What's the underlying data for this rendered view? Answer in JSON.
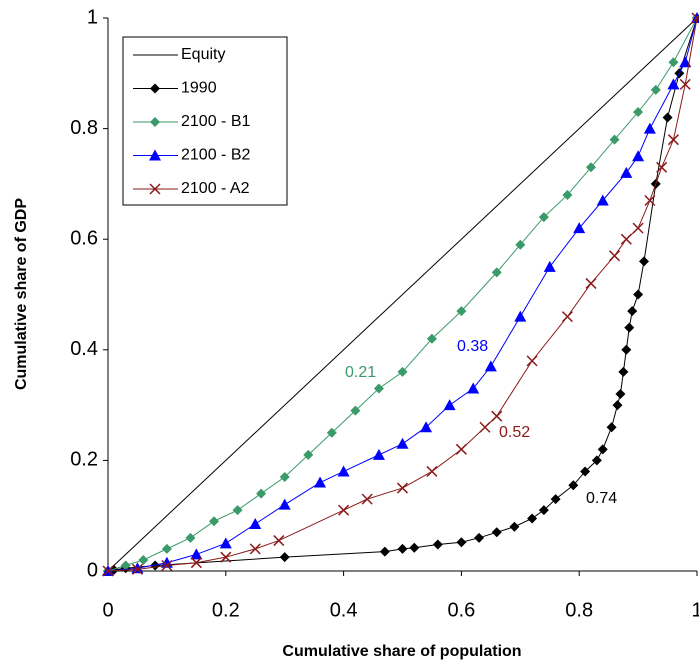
{
  "chart_data": {
    "type": "line",
    "xlabel": "Cumulative share of population",
    "ylabel": "Cumulative share of GDP",
    "xlim": [
      0,
      1
    ],
    "ylim": [
      0,
      1
    ],
    "xticks": [
      0,
      0.2,
      0.4,
      0.6,
      0.8,
      1
    ],
    "yticks": [
      0,
      0.2,
      0.4,
      0.6,
      0.8,
      1
    ],
    "legend": "upper left",
    "series": [
      {
        "name": "Equity",
        "color": "#000000",
        "marker": "none",
        "x": [
          0,
          1
        ],
        "values": [
          0,
          1
        ]
      },
      {
        "name": "1990",
        "color": "#000000",
        "marker": "diamond",
        "x": [
          0,
          0.01,
          0.03,
          0.08,
          0.3,
          0.47,
          0.5,
          0.52,
          0.56,
          0.6,
          0.63,
          0.66,
          0.69,
          0.72,
          0.74,
          0.76,
          0.79,
          0.81,
          0.83,
          0.84,
          0.855,
          0.865,
          0.87,
          0.875,
          0.88,
          0.885,
          0.89,
          0.9,
          0.91,
          0.93,
          0.95,
          0.97,
          1
        ],
        "values": [
          0,
          0.002,
          0.005,
          0.01,
          0.025,
          0.035,
          0.04,
          0.042,
          0.048,
          0.052,
          0.06,
          0.07,
          0.08,
          0.095,
          0.11,
          0.13,
          0.155,
          0.18,
          0.2,
          0.22,
          0.26,
          0.3,
          0.32,
          0.36,
          0.4,
          0.44,
          0.47,
          0.5,
          0.56,
          0.7,
          0.82,
          0.9,
          1
        ]
      },
      {
        "name": "2100 - B1",
        "color": "#3a9a6a",
        "marker": "diamond",
        "x": [
          0,
          0.03,
          0.06,
          0.1,
          0.14,
          0.18,
          0.22,
          0.26,
          0.3,
          0.34,
          0.38,
          0.42,
          0.46,
          0.5,
          0.55,
          0.6,
          0.66,
          0.7,
          0.74,
          0.78,
          0.82,
          0.86,
          0.9,
          0.93,
          0.96,
          1
        ],
        "values": [
          0,
          0.01,
          0.02,
          0.04,
          0.06,
          0.09,
          0.11,
          0.14,
          0.17,
          0.21,
          0.25,
          0.29,
          0.33,
          0.36,
          0.42,
          0.47,
          0.54,
          0.59,
          0.64,
          0.68,
          0.73,
          0.78,
          0.83,
          0.87,
          0.92,
          1
        ]
      },
      {
        "name": "2100 - B2",
        "color": "#0000ff",
        "marker": "triangle",
        "x": [
          0,
          0.05,
          0.1,
          0.15,
          0.2,
          0.25,
          0.3,
          0.36,
          0.4,
          0.46,
          0.5,
          0.54,
          0.58,
          0.62,
          0.65,
          0.7,
          0.75,
          0.8,
          0.84,
          0.88,
          0.9,
          0.92,
          0.96,
          0.98,
          1
        ],
        "values": [
          0,
          0.005,
          0.015,
          0.03,
          0.05,
          0.085,
          0.12,
          0.16,
          0.18,
          0.21,
          0.23,
          0.26,
          0.3,
          0.33,
          0.37,
          0.46,
          0.55,
          0.62,
          0.67,
          0.72,
          0.75,
          0.8,
          0.88,
          0.92,
          1
        ]
      },
      {
        "name": "2100 - A2",
        "color": "#8b1a1a",
        "marker": "x",
        "x": [
          0,
          0.05,
          0.1,
          0.15,
          0.2,
          0.25,
          0.29,
          0.4,
          0.44,
          0.5,
          0.55,
          0.6,
          0.64,
          0.66,
          0.72,
          0.78,
          0.82,
          0.86,
          0.88,
          0.9,
          0.92,
          0.94,
          0.96,
          0.98,
          1
        ],
        "values": [
          0,
          0.003,
          0.01,
          0.015,
          0.025,
          0.04,
          0.055,
          0.11,
          0.13,
          0.15,
          0.18,
          0.22,
          0.26,
          0.28,
          0.38,
          0.46,
          0.52,
          0.57,
          0.6,
          0.62,
          0.67,
          0.73,
          0.78,
          0.88,
          1
        ]
      }
    ],
    "annotations": [
      {
        "text": "0.21",
        "color": "#3a9a6a"
      },
      {
        "text": "0.38",
        "color": "#0000ff"
      },
      {
        "text": "0.52",
        "color": "#8b1a1a"
      },
      {
        "text": "0.74",
        "color": "#000000"
      }
    ]
  }
}
